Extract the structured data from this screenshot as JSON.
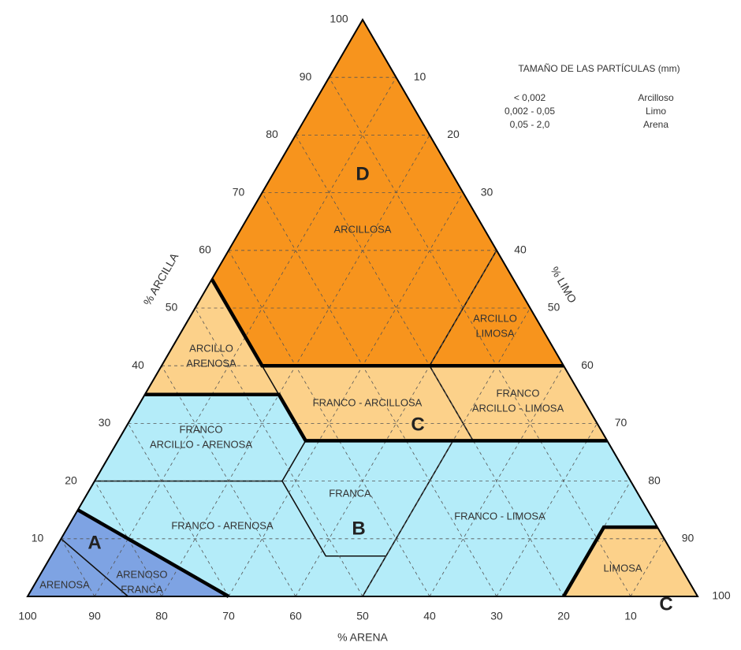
{
  "title": "TAMAÑO DE LAS PARTÍCULAS (mm)",
  "legend": [
    {
      "range": "< 0,002",
      "name": "Arcilloso"
    },
    {
      "range": "0,002 - 0,05",
      "name": "Limo"
    },
    {
      "range": "0,05 - 2,0",
      "name": "Arena"
    }
  ],
  "axes": {
    "clay": {
      "label": "% ARCILLA",
      "ticks": [
        10,
        20,
        30,
        40,
        50,
        60,
        70,
        80,
        90,
        100
      ]
    },
    "silt": {
      "label": "% LIMO",
      "ticks": [
        10,
        20,
        30,
        40,
        50,
        60,
        70,
        80,
        90,
        100
      ]
    },
    "sand": {
      "label": "% ARENA",
      "ticks": [
        100,
        90,
        80,
        70,
        60,
        50,
        40,
        30,
        20,
        10
      ]
    }
  },
  "regions": [
    {
      "lines": [
        "ARCILLOSA"
      ]
    },
    {
      "lines": [
        "ARCILLO",
        "LIMOSA"
      ]
    },
    {
      "lines": [
        "ARCILLO",
        "ARENOSA"
      ]
    },
    {
      "lines": [
        "FRANCO - ARCILLOSA"
      ]
    },
    {
      "lines": [
        "FRANCO",
        "ARCILLO - LIMOSA"
      ]
    },
    {
      "lines": [
        "FRANCO",
        "ARCILLO - ARENOSA"
      ]
    },
    {
      "lines": [
        "FRANCA"
      ]
    },
    {
      "lines": [
        "FRANCO - ARENOSA"
      ]
    },
    {
      "lines": [
        "FRANCO - LIMOSA"
      ]
    },
    {
      "lines": [
        "LIMOSA"
      ]
    },
    {
      "lines": [
        "ARENOSA"
      ]
    },
    {
      "lines": [
        "ARENOSO",
        "FRANCA"
      ]
    }
  ],
  "group_labels": [
    "D",
    "C",
    "B",
    "A",
    "C"
  ]
}
